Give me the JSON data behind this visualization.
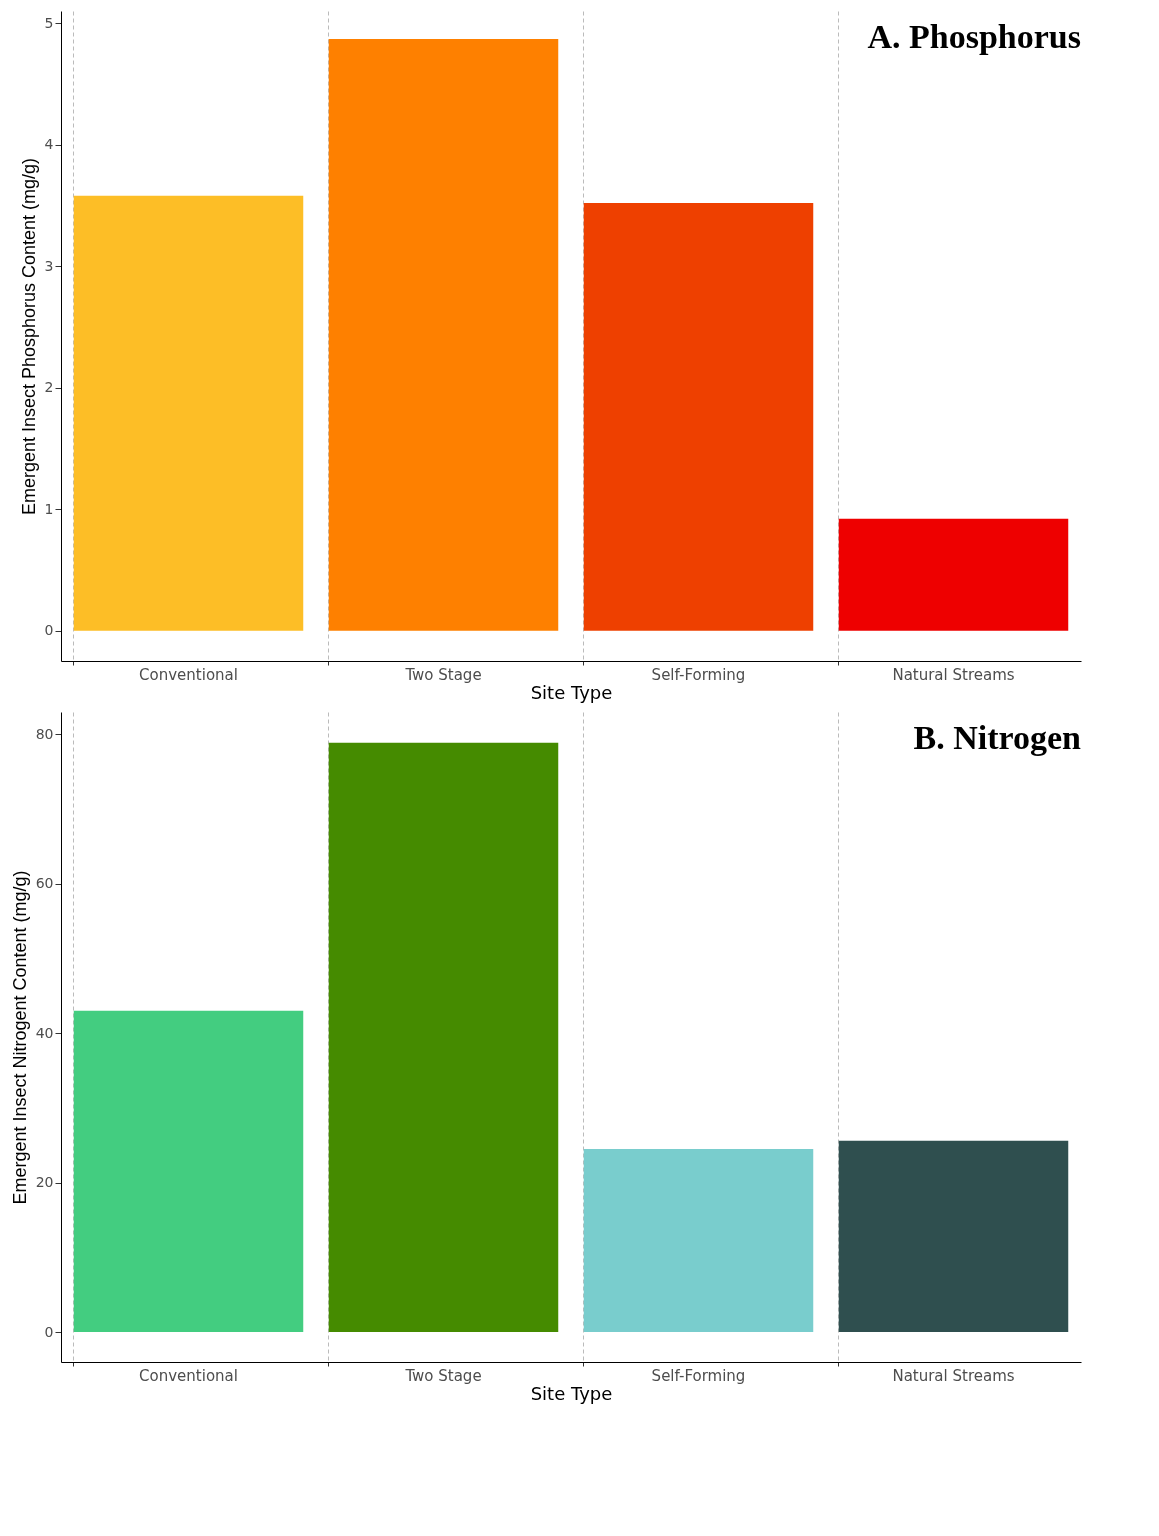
{
  "chart_data": [
    {
      "type": "bar",
      "title": "A. Phosphorus",
      "xlabel": "Site Type",
      "ylabel": "Emergent Insect Phosphorus Content (mg/g)",
      "categories": [
        "Conventional",
        "Two Stage",
        "Self-Forming",
        "Natural Streams"
      ],
      "values": [
        3.58,
        4.87,
        3.52,
        0.92
      ],
      "colors": [
        "#fdbe26",
        "#fe8000",
        "#ee4000",
        "#ee0000"
      ],
      "ylim": [
        -0.25,
        5.1
      ],
      "yticks": [
        0,
        1,
        2,
        3,
        4,
        5
      ],
      "grid": "x"
    },
    {
      "type": "bar",
      "title": "B. Nitrogen",
      "xlabel": "Site Type",
      "ylabel": "Emergent Insect Nitrogent Content (mg/g)",
      "categories": [
        "Conventional",
        "Two Stage",
        "Self-Forming",
        "Natural Streams"
      ],
      "values": [
        43.0,
        78.9,
        24.5,
        25.6
      ],
      "colors": [
        "#43cd80",
        "#458b00",
        "#79cdcd",
        "#2f4f4f"
      ],
      "ylim": [
        -4,
        83
      ],
      "yticks": [
        0,
        20,
        40,
        60,
        80
      ],
      "grid": "x"
    }
  ]
}
